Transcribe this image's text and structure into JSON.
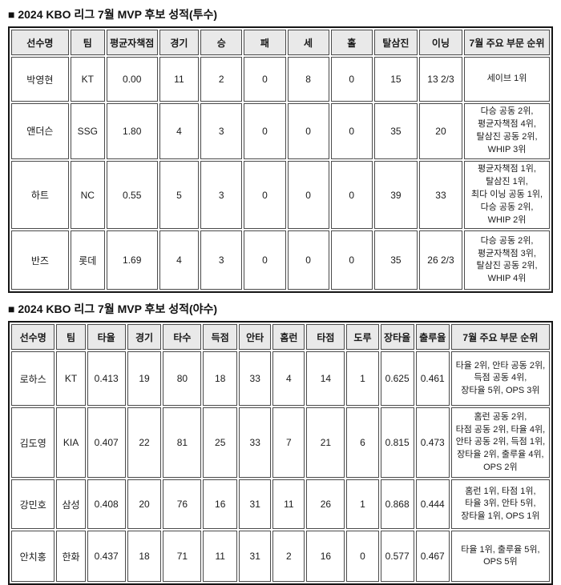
{
  "colors": {
    "header_bg": "#e9e9e9",
    "cell_border": "#4a4a4a",
    "outer_border": "#161616",
    "text": "#1a1a1a",
    "background": "#ffffff"
  },
  "tables": [
    {
      "id": "pitchers",
      "title": "■ 2024 KBO 리그 7월 MVP 후보 성적(투수)",
      "headers": [
        "선수명",
        "팀",
        "평균자책점",
        "경기",
        "승",
        "패",
        "세",
        "홀",
        "탈삼진",
        "이닝",
        "7월 주요 부문 순위"
      ],
      "rows": [
        [
          "박영현",
          "KT",
          "0.00",
          "11",
          "2",
          "0",
          "8",
          "0",
          "15",
          "13 2/3",
          "세이브 1위"
        ],
        [
          "앤더슨",
          "SSG",
          "1.80",
          "4",
          "3",
          "0",
          "0",
          "0",
          "35",
          "20",
          "다승 공동 2위,\n평균자책점 4위,\n탈삼진 공동 2위,\nWHIP 3위"
        ],
        [
          "하트",
          "NC",
          "0.55",
          "5",
          "3",
          "0",
          "0",
          "0",
          "39",
          "33",
          "평균자책점 1위,\n탈삼진 1위,\n최다 이닝 공동 1위,\n다승 공동 2위,\nWHIP 2위"
        ],
        [
          "반즈",
          "롯데",
          "1.69",
          "4",
          "3",
          "0",
          "0",
          "0",
          "35",
          "26 2/3",
          "다승 공동 2위,\n평균자책점 3위,\n탈삼진 공동 2위,\nWHIP 4위"
        ]
      ]
    },
    {
      "id": "hitters",
      "title": "■ 2024 KBO 리그 7월 MVP 후보 성적(야수)",
      "headers": [
        "선수명",
        "팀",
        "타율",
        "경기",
        "타수",
        "득점",
        "안타",
        "홈런",
        "타점",
        "도루",
        "장타율",
        "출루율",
        "7월 주요 부문 순위"
      ],
      "rows": [
        [
          "로하스",
          "KT",
          "0.413",
          "19",
          "80",
          "18",
          "33",
          "4",
          "14",
          "1",
          "0.625",
          "0.461",
          "타율 2위, 안타 공동 2위,\n득점 공동 4위,\n장타율 5위, OPS 3위"
        ],
        [
          "김도영",
          "KIA",
          "0.407",
          "22",
          "81",
          "25",
          "33",
          "7",
          "21",
          "6",
          "0.815",
          "0.473",
          "홈런 공동 2위,\n타점 공동 2위, 타율 4위,\n안타 공동 2위, 득점 1위,\n장타율 2위, 출루율 4위,\nOPS 2위"
        ],
        [
          "강민호",
          "삼성",
          "0.408",
          "20",
          "76",
          "16",
          "31",
          "11",
          "26",
          "1",
          "0.868",
          "0.444",
          "홈런 1위, 타점 1위,\n타율 3위, 안타 5위,\n장타율 1위, OPS 1위"
        ],
        [
          "안치홍",
          "한화",
          "0.437",
          "18",
          "71",
          "11",
          "31",
          "2",
          "16",
          "0",
          "0.577",
          "0.467",
          "타율 1위, 출루율 5위,\nOPS 5위"
        ]
      ]
    }
  ]
}
